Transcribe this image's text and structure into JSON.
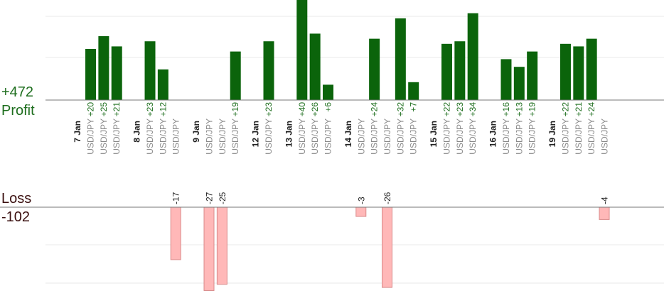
{
  "summary": {
    "profit_total": "+472",
    "profit_label": "Profit",
    "loss_label": "Loss",
    "loss_total": "-102"
  },
  "colors": {
    "profit_bar": "#0b640b",
    "profit_text": "#1e6e1e",
    "loss_bar": "#ffb8b8",
    "loss_bar_border": "#d98a8a",
    "date_text": "#222222",
    "pair_text": "#8a8a8a",
    "grid": "#e8e8e8",
    "axis": "#777777"
  },
  "chart_data": {
    "type": "bar",
    "title": "",
    "xlabel": "",
    "ylabel": "",
    "grid": true,
    "legend": "none",
    "profit_ylim": [
      0,
      40
    ],
    "loss_ylim": [
      -27,
      0
    ],
    "columns": [
      {
        "date": "7 Jan"
      },
      {
        "pair": "USD/JPY",
        "value": 20
      },
      {
        "pair": "USD/JPY",
        "value": 25
      },
      {
        "pair": "USD/JPY",
        "value": 21
      },
      {
        "spacer": true
      },
      {
        "date": "8 Jan"
      },
      {
        "pair": "USD/JPY",
        "value": 23
      },
      {
        "pair": "USD/JPY",
        "value": 12
      },
      {
        "pair": "USD/JPY",
        "value": -17
      },
      {
        "spacer": true
      },
      {
        "date": "9 Jan"
      },
      {
        "pair": "USD/JPY",
        "value": -27
      },
      {
        "pair": "USD/JPY",
        "value": -25
      },
      {
        "pair": "USD/JPY",
        "value": 19
      },
      {
        "spacer": true
      },
      {
        "date": "12 Jan"
      },
      {
        "pair": "USD/JPY",
        "value": 23
      },
      {
        "spacer": true
      },
      {
        "date": "13 Jan"
      },
      {
        "pair": "USD/JPY",
        "value": 40
      },
      {
        "pair": "USD/JPY",
        "value": 26
      },
      {
        "pair": "USD/JPY",
        "value": 6
      },
      {
        "spacer": true
      },
      {
        "date": "14 Jan"
      },
      {
        "pair": "USD/JPY",
        "value": -3
      },
      {
        "pair": "USD/JPY",
        "value": 24
      },
      {
        "pair": "USD/JPY",
        "value": -26
      },
      {
        "pair": "USD/JPY",
        "value": 32
      },
      {
        "pair": "USD/JPY",
        "value": 7
      },
      {
        "spacer": true
      },
      {
        "date": "15 Jan"
      },
      {
        "pair": "USD/JPY",
        "value": 22
      },
      {
        "pair": "USD/JPY",
        "value": 23
      },
      {
        "pair": "USD/JPY",
        "value": 34
      },
      {
        "spacer": true
      },
      {
        "date": "16 Jan"
      },
      {
        "pair": "USD/JPY",
        "value": 16
      },
      {
        "pair": "USD/JPY",
        "value": 13
      },
      {
        "pair": "USD/JPY",
        "value": 19
      },
      {
        "spacer": true
      },
      {
        "date": "19 Jan"
      },
      {
        "pair": "USD/JPY",
        "value": 22
      },
      {
        "pair": "USD/JPY",
        "value": 21
      },
      {
        "pair": "USD/JPY",
        "value": 24
      },
      {
        "pair": "USD/JPY",
        "value": -4
      }
    ]
  }
}
